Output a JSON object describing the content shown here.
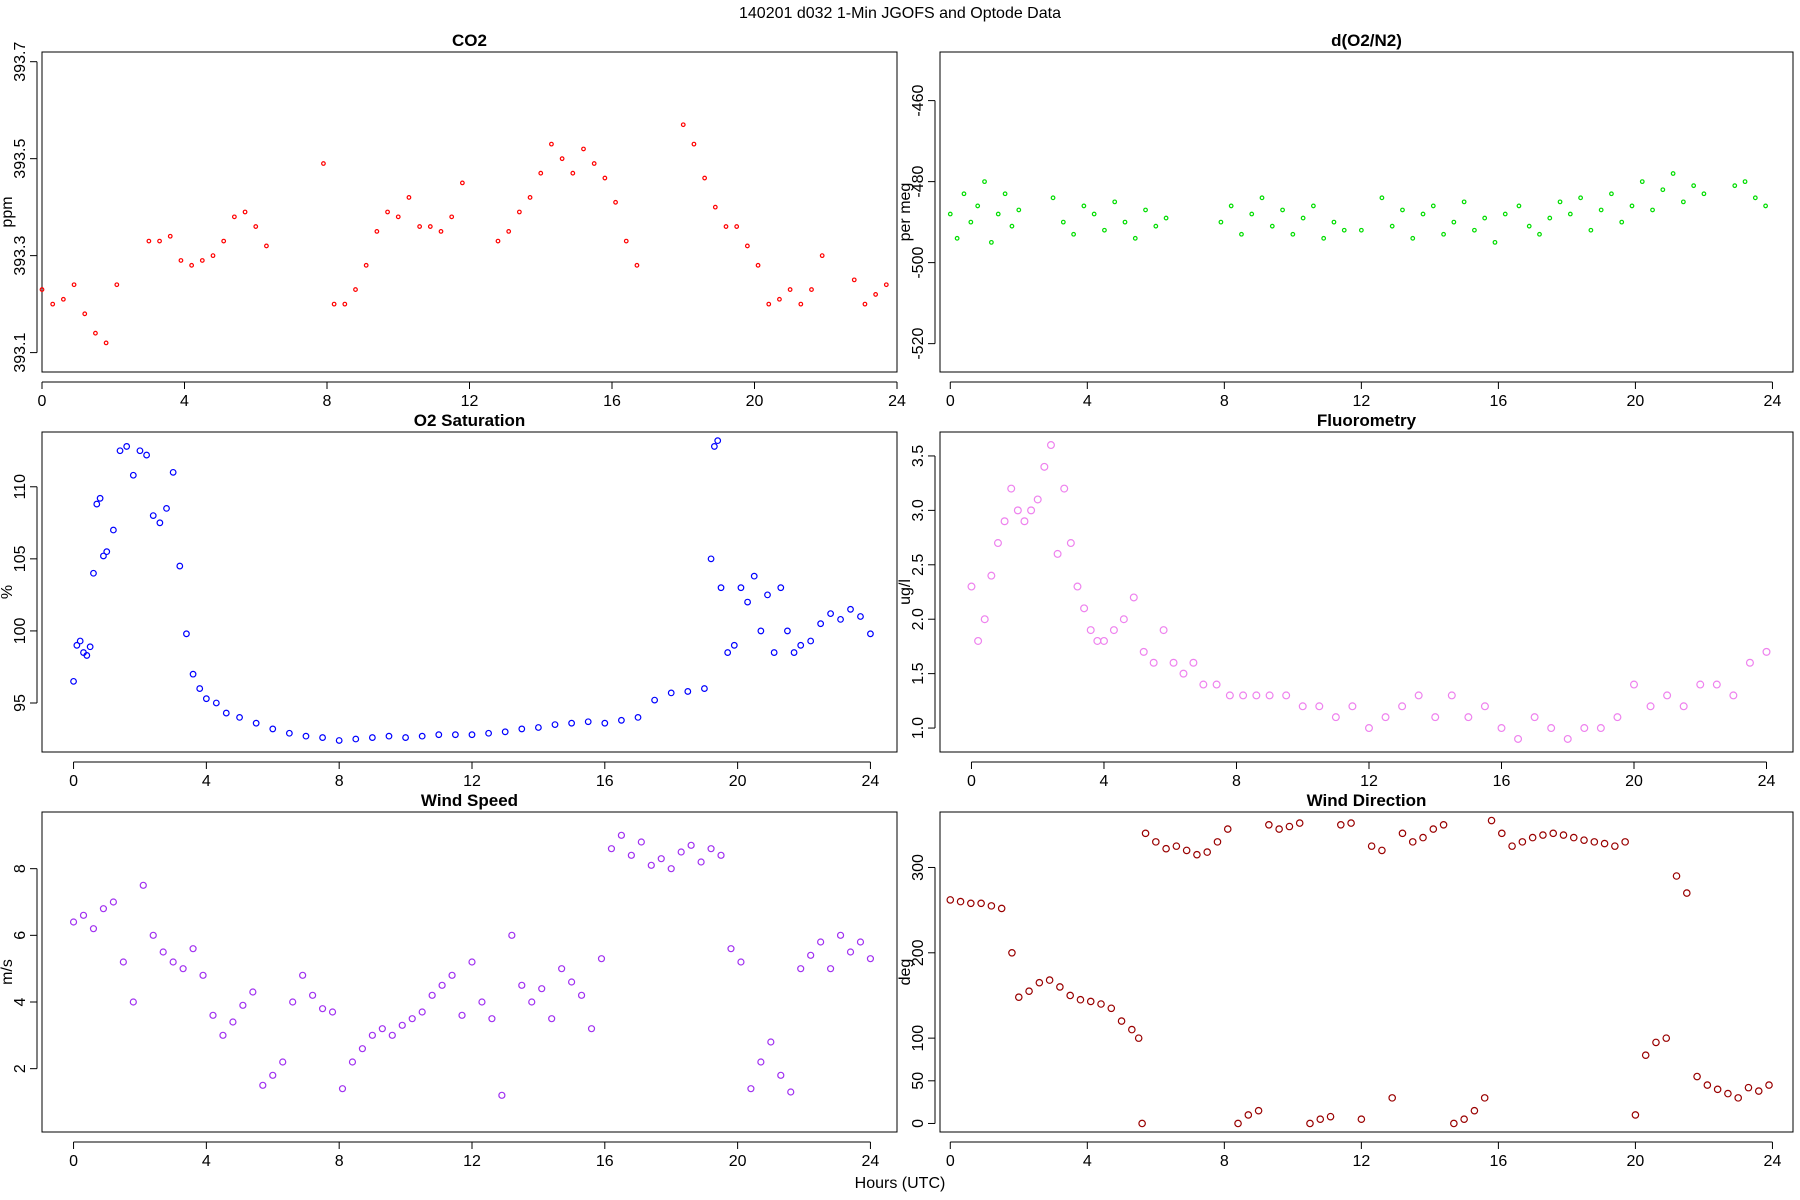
{
  "figure": {
    "suptitle": "140201   d032   1-Min  JGOFS and Optode Data",
    "xlabel": "Hours (UTC)"
  },
  "chart_data": [
    {
      "type": "scatter",
      "title": "CO2",
      "ylabel": "ppm",
      "xlim": [
        0,
        24
      ],
      "ylim": [
        393.06,
        393.72
      ],
      "x_ticks": [
        0,
        4,
        8,
        12,
        16,
        20,
        24
      ],
      "x_tick_labels": [
        "0",
        "4",
        "8",
        "12",
        "16",
        "20",
        "24"
      ],
      "y_ticks": [
        393.1,
        393.3,
        393.5,
        393.7
      ],
      "y_tick_labels": [
        "393.1",
        "393.3",
        "393.5",
        "393.7"
      ],
      "color": "#ff0000",
      "grid": false,
      "x": [
        0.0,
        0.3,
        0.6,
        0.9,
        1.2,
        1.5,
        1.8,
        2.1,
        3.0,
        3.3,
        3.6,
        3.9,
        4.2,
        4.5,
        4.8,
        5.1,
        5.4,
        5.7,
        6.0,
        6.3,
        7.9,
        8.2,
        8.5,
        8.8,
        9.1,
        9.4,
        9.7,
        10.0,
        10.3,
        10.6,
        10.9,
        11.2,
        11.5,
        11.8,
        12.8,
        13.1,
        13.4,
        13.7,
        14.0,
        14.3,
        14.6,
        14.9,
        15.2,
        15.5,
        15.8,
        16.1,
        16.4,
        16.7,
        18.0,
        18.3,
        18.6,
        18.9,
        19.2,
        19.5,
        19.8,
        20.1,
        20.4,
        20.7,
        21.0,
        21.3,
        21.6,
        21.9,
        22.8,
        23.1,
        23.4,
        23.7
      ],
      "y": [
        393.23,
        393.2,
        393.21,
        393.24,
        393.18,
        393.14,
        393.12,
        393.24,
        393.33,
        393.33,
        393.34,
        393.29,
        393.28,
        393.29,
        393.3,
        393.33,
        393.38,
        393.39,
        393.36,
        393.32,
        393.49,
        393.2,
        393.2,
        393.23,
        393.28,
        393.35,
        393.39,
        393.38,
        393.42,
        393.36,
        393.36,
        393.35,
        393.38,
        393.45,
        393.33,
        393.35,
        393.39,
        393.42,
        393.47,
        393.53,
        393.5,
        393.47,
        393.52,
        393.49,
        393.46,
        393.41,
        393.33,
        393.28,
        393.57,
        393.53,
        393.46,
        393.4,
        393.36,
        393.36,
        393.32,
        393.28,
        393.2,
        393.21,
        393.23,
        393.2,
        393.23,
        393.3,
        393.25,
        393.2,
        393.22,
        393.24
      ]
    },
    {
      "type": "scatter",
      "title": "d(O2/N2)",
      "ylabel": "per meg",
      "xlim": [
        -0.3,
        24.6
      ],
      "ylim": [
        -527,
        -448
      ],
      "x_ticks": [
        0,
        4,
        8,
        12,
        16,
        20,
        24
      ],
      "x_tick_labels": [
        "0",
        "4",
        "8",
        "12",
        "16",
        "20",
        "24"
      ],
      "y_ticks": [
        -520,
        -500,
        -480,
        -460
      ],
      "y_tick_labels": [
        "-520",
        "-500",
        "-480",
        "-460"
      ],
      "color": "#00dd00",
      "grid": false,
      "x": [
        0.0,
        0.2,
        0.4,
        0.6,
        0.8,
        1.0,
        1.2,
        1.4,
        1.6,
        1.8,
        2.0,
        3.0,
        3.3,
        3.6,
        3.9,
        4.2,
        4.5,
        4.8,
        5.1,
        5.4,
        5.7,
        6.0,
        6.3,
        7.9,
        8.2,
        8.5,
        8.8,
        9.1,
        9.4,
        9.7,
        10.0,
        10.3,
        10.6,
        10.9,
        11.2,
        11.5,
        12.0,
        12.6,
        12.9,
        13.2,
        13.5,
        13.8,
        14.1,
        14.4,
        14.7,
        15.0,
        15.3,
        15.6,
        15.9,
        16.2,
        16.6,
        16.9,
        17.2,
        17.5,
        17.8,
        18.1,
        18.4,
        18.7,
        19.0,
        19.3,
        19.6,
        19.9,
        20.2,
        20.5,
        20.8,
        21.1,
        21.4,
        21.7,
        22.0,
        22.9,
        23.2,
        23.5,
        23.8
      ],
      "y": [
        -488,
        -494,
        -483,
        -490,
        -486,
        -480,
        -495,
        -488,
        -483,
        -491,
        -487,
        -484,
        -490,
        -493,
        -486,
        -488,
        -492,
        -485,
        -490,
        -494,
        -487,
        -491,
        -489,
        -490,
        -486,
        -493,
        -488,
        -484,
        -491,
        -487,
        -493,
        -489,
        -486,
        -494,
        -490,
        -492,
        -492,
        -484,
        -491,
        -487,
        -494,
        -488,
        -486,
        -493,
        -490,
        -485,
        -492,
        -489,
        -495,
        -488,
        -486,
        -491,
        -493,
        -489,
        -485,
        -488,
        -484,
        -492,
        -487,
        -483,
        -490,
        -486,
        -480,
        -487,
        -482,
        -478,
        -485,
        -481,
        -483,
        -481,
        -480,
        -484,
        -486
      ]
    },
    {
      "type": "scatter",
      "title": "O2 Saturation",
      "ylabel": "%",
      "xlim": [
        -0.95,
        24.8
      ],
      "ylim": [
        91.6,
        113.8
      ],
      "x_ticks": [
        0,
        4,
        8,
        12,
        16,
        20,
        24
      ],
      "x_tick_labels": [
        "0",
        "4",
        "8",
        "12",
        "16",
        "20",
        "24"
      ],
      "y_ticks": [
        95,
        100,
        105,
        110
      ],
      "y_tick_labels": [
        "95",
        "100",
        "105",
        "110"
      ],
      "color": "#0000ff",
      "grid": false,
      "x": [
        0.0,
        0.1,
        0.2,
        0.3,
        0.4,
        0.5,
        0.6,
        0.7,
        0.8,
        0.9,
        1.0,
        1.2,
        1.4,
        1.6,
        1.8,
        2.0,
        2.2,
        2.4,
        2.6,
        2.8,
        3.0,
        3.2,
        3.4,
        3.6,
        3.8,
        4.0,
        4.3,
        4.6,
        5.0,
        5.5,
        6.0,
        6.5,
        7.0,
        7.5,
        8.0,
        8.5,
        9.0,
        9.5,
        10.0,
        10.5,
        11.0,
        11.5,
        12.0,
        12.5,
        13.0,
        13.5,
        14.0,
        14.5,
        15.0,
        15.5,
        16.0,
        16.5,
        17.0,
        17.5,
        18.0,
        18.5,
        19.0,
        19.2,
        19.3,
        19.4,
        19.5,
        19.7,
        19.9,
        20.1,
        20.3,
        20.5,
        20.7,
        20.9,
        21.1,
        21.3,
        21.5,
        21.7,
        21.9,
        22.2,
        22.5,
        22.8,
        23.1,
        23.4,
        23.7,
        24.0
      ],
      "y": [
        96.5,
        99.0,
        99.3,
        98.5,
        98.3,
        98.9,
        104.0,
        108.8,
        109.2,
        105.2,
        105.5,
        107.0,
        112.5,
        112.8,
        110.8,
        112.5,
        112.2,
        108.0,
        107.5,
        108.5,
        111.0,
        104.5,
        99.8,
        97.0,
        96.0,
        95.3,
        95.0,
        94.3,
        94.0,
        93.6,
        93.2,
        92.9,
        92.7,
        92.6,
        92.4,
        92.5,
        92.6,
        92.7,
        92.6,
        92.7,
        92.8,
        92.8,
        92.8,
        92.9,
        93.0,
        93.2,
        93.3,
        93.5,
        93.6,
        93.7,
        93.6,
        93.8,
        94.0,
        95.2,
        95.7,
        95.8,
        96.0,
        105.0,
        112.8,
        113.2,
        103.0,
        98.5,
        99.0,
        103.0,
        102.0,
        103.8,
        100.0,
        102.5,
        98.5,
        103.0,
        100.0,
        98.5,
        99.0,
        99.3,
        100.5,
        101.2,
        100.8,
        101.5,
        101.0,
        99.8
      ]
    },
    {
      "type": "scatter",
      "title": "Fluorometry",
      "ylabel": "ug/l",
      "xlim": [
        -0.95,
        24.8
      ],
      "ylim": [
        0.78,
        3.72
      ],
      "x_ticks": [
        0,
        4,
        8,
        12,
        16,
        20,
        24
      ],
      "x_tick_labels": [
        "0",
        "4",
        "8",
        "12",
        "16",
        "20",
        "24"
      ],
      "y_ticks": [
        1.0,
        1.5,
        2.0,
        2.5,
        3.0,
        3.5
      ],
      "y_tick_labels": [
        "1.0",
        "1.5",
        "2.0",
        "2.5",
        "3.0",
        "3.5"
      ],
      "color": "#ee82ee",
      "grid": false,
      "x": [
        0.0,
        0.2,
        0.4,
        0.6,
        0.8,
        1.0,
        1.2,
        1.4,
        1.6,
        1.8,
        2.0,
        2.2,
        2.4,
        2.6,
        2.8,
        3.0,
        3.2,
        3.4,
        3.6,
        3.8,
        4.0,
        4.3,
        4.6,
        4.9,
        5.2,
        5.5,
        5.8,
        6.1,
        6.4,
        6.7,
        7.0,
        7.4,
        7.8,
        8.2,
        8.6,
        9.0,
        9.5,
        10.0,
        10.5,
        11.0,
        11.5,
        12.0,
        12.5,
        13.0,
        13.5,
        14.0,
        14.5,
        15.0,
        15.5,
        16.0,
        16.5,
        17.0,
        17.5,
        18.0,
        18.5,
        19.0,
        19.5,
        20.0,
        20.5,
        21.0,
        21.5,
        22.0,
        22.5,
        23.0,
        23.5,
        24.0
      ],
      "y": [
        2.3,
        1.8,
        2.0,
        2.4,
        2.7,
        2.9,
        3.2,
        3.0,
        2.9,
        3.0,
        3.1,
        3.4,
        3.6,
        2.6,
        3.2,
        2.7,
        2.3,
        2.1,
        1.9,
        1.8,
        1.8,
        1.9,
        2.0,
        2.2,
        1.7,
        1.6,
        1.9,
        1.6,
        1.5,
        1.6,
        1.4,
        1.4,
        1.3,
        1.3,
        1.3,
        1.3,
        1.3,
        1.2,
        1.2,
        1.1,
        1.2,
        1.0,
        1.1,
        1.2,
        1.3,
        1.1,
        1.3,
        1.1,
        1.2,
        1.0,
        0.9,
        1.1,
        1.0,
        0.9,
        1.0,
        1.0,
        1.1,
        1.4,
        1.2,
        1.3,
        1.2,
        1.4,
        1.4,
        1.3,
        1.6,
        1.7
      ]
    },
    {
      "type": "scatter",
      "title": "Wind Speed",
      "ylabel": "m/s",
      "xlim": [
        -0.95,
        24.8
      ],
      "ylim": [
        0.1,
        9.7
      ],
      "x_ticks": [
        0,
        4,
        8,
        12,
        16,
        20,
        24
      ],
      "x_tick_labels": [
        "0",
        "4",
        "8",
        "12",
        "16",
        "20",
        "24"
      ],
      "y_ticks": [
        2,
        4,
        6,
        8
      ],
      "y_tick_labels": [
        "2",
        "4",
        "6",
        "8"
      ],
      "color": "#a030f0",
      "grid": false,
      "x": [
        0.0,
        0.3,
        0.6,
        0.9,
        1.2,
        1.5,
        1.8,
        2.1,
        2.4,
        2.7,
        3.0,
        3.3,
        3.6,
        3.9,
        4.2,
        4.5,
        4.8,
        5.1,
        5.4,
        5.7,
        6.0,
        6.3,
        6.6,
        6.9,
        7.2,
        7.5,
        7.8,
        8.1,
        8.4,
        8.7,
        9.0,
        9.3,
        9.6,
        9.9,
        10.2,
        10.5,
        10.8,
        11.1,
        11.4,
        11.7,
        12.0,
        12.3,
        12.6,
        12.9,
        13.2,
        13.5,
        13.8,
        14.1,
        14.4,
        14.7,
        15.0,
        15.3,
        15.6,
        15.9,
        16.2,
        16.5,
        16.8,
        17.1,
        17.4,
        17.7,
        18.0,
        18.3,
        18.6,
        18.9,
        19.2,
        19.5,
        19.8,
        20.1,
        20.4,
        20.7,
        21.0,
        21.3,
        21.6,
        21.9,
        22.2,
        22.5,
        22.8,
        23.1,
        23.4,
        23.7,
        24.0
      ],
      "y": [
        6.4,
        6.6,
        6.2,
        6.8,
        7.0,
        5.2,
        4.0,
        7.5,
        6.0,
        5.5,
        5.2,
        5.0,
        5.6,
        4.8,
        3.6,
        3.0,
        3.4,
        3.9,
        4.3,
        1.5,
        1.8,
        2.2,
        4.0,
        4.8,
        4.2,
        3.8,
        3.7,
        1.4,
        2.2,
        2.6,
        3.0,
        3.2,
        3.0,
        3.3,
        3.5,
        3.7,
        4.2,
        4.5,
        4.8,
        3.6,
        5.2,
        4.0,
        3.5,
        1.2,
        6.0,
        4.5,
        4.0,
        4.4,
        3.5,
        5.0,
        4.6,
        4.2,
        3.2,
        5.3,
        8.6,
        9.0,
        8.4,
        8.8,
        8.1,
        8.3,
        8.0,
        8.5,
        8.7,
        8.2,
        8.6,
        8.4,
        5.6,
        5.2,
        1.4,
        2.2,
        2.8,
        1.8,
        1.3,
        5.0,
        5.4,
        5.8,
        5.0,
        6.0,
        5.5,
        5.8,
        5.3
      ]
    },
    {
      "type": "scatter",
      "title": "Wind Direction",
      "ylabel": "deg",
      "xlim": [
        -0.3,
        24.6
      ],
      "ylim": [
        -10,
        365
      ],
      "x_ticks": [
        0,
        4,
        8,
        12,
        16,
        20,
        24
      ],
      "x_tick_labels": [
        "0",
        "4",
        "8",
        "12",
        "16",
        "20",
        "24"
      ],
      "y_ticks": [
        0,
        50,
        100,
        200,
        300
      ],
      "y_tick_labels": [
        "0",
        "50",
        "100",
        "200",
        "300"
      ],
      "color": "#990000",
      "grid": false,
      "x": [
        0.0,
        0.3,
        0.6,
        0.9,
        1.2,
        1.5,
        1.8,
        2.0,
        2.3,
        2.6,
        2.9,
        3.2,
        3.5,
        3.8,
        4.1,
        4.4,
        4.7,
        5.0,
        5.3,
        5.5,
        5.6,
        5.7,
        6.0,
        6.3,
        6.6,
        6.9,
        7.2,
        7.5,
        7.8,
        8.1,
        8.4,
        8.7,
        9.0,
        9.3,
        9.6,
        9.9,
        10.2,
        10.5,
        10.8,
        11.1,
        11.4,
        11.7,
        12.0,
        12.3,
        12.6,
        12.9,
        13.2,
        13.5,
        13.8,
        14.1,
        14.4,
        14.7,
        15.0,
        15.3,
        15.6,
        15.8,
        16.1,
        16.4,
        16.7,
        17.0,
        17.3,
        17.6,
        17.9,
        18.2,
        18.5,
        18.8,
        19.1,
        19.4,
        19.7,
        20.0,
        20.3,
        20.6,
        20.9,
        21.2,
        21.5,
        21.8,
        22.1,
        22.4,
        22.7,
        23.0,
        23.3,
        23.6,
        23.9
      ],
      "y": [
        262,
        260,
        258,
        258,
        255,
        252,
        200,
        148,
        155,
        165,
        168,
        160,
        150,
        145,
        143,
        140,
        135,
        120,
        110,
        100,
        0,
        340,
        330,
        322,
        325,
        320,
        315,
        318,
        330,
        345,
        0,
        10,
        15,
        350,
        345,
        348,
        352,
        0,
        5,
        8,
        350,
        352,
        5,
        325,
        320,
        30,
        340,
        330,
        335,
        345,
        350,
        0,
        5,
        15,
        30,
        355,
        340,
        325,
        330,
        335,
        338,
        340,
        338,
        335,
        332,
        330,
        328,
        325,
        330,
        10,
        80,
        95,
        100,
        290,
        270,
        55,
        45,
        40,
        35,
        30,
        42,
        38,
        45
      ]
    }
  ]
}
